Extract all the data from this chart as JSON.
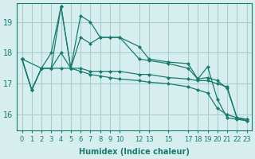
{
  "xlabel": "Humidex (Indice chaleur)",
  "ylabel": "",
  "bg_color": "#d6eeee",
  "grid_color": "#aacccc",
  "line_color": "#1a7a6e",
  "xtick_positions": [
    0,
    1,
    2,
    3,
    4,
    5,
    6,
    7,
    8,
    9,
    10,
    12,
    13,
    15,
    17,
    18,
    19,
    20,
    21,
    22,
    23
  ],
  "xtick_labels": [
    "0",
    "1",
    "2",
    "3",
    "4",
    "5",
    "6",
    "7",
    "8",
    "9",
    "10",
    "12",
    "13",
    "15",
    "17",
    "18",
    "19",
    "20",
    "21",
    "22",
    "23"
  ],
  "ylim": [
    15.5,
    19.6
  ],
  "xlim": [
    -0.5,
    23.5
  ],
  "yticks": [
    16,
    17,
    18,
    19
  ],
  "series": [
    {
      "x": [
        0,
        1,
        2,
        3,
        4,
        5,
        6,
        7,
        8,
        9,
        10,
        12,
        13,
        15,
        17,
        18,
        19,
        20,
        21,
        22,
        23
      ],
      "y": [
        17.8,
        16.8,
        17.5,
        17.5,
        19.5,
        17.5,
        19.2,
        19.0,
        18.5,
        18.5,
        18.5,
        18.2,
        17.8,
        17.7,
        17.65,
        17.15,
        17.2,
        17.1,
        16.85,
        15.9,
        15.85
      ]
    },
    {
      "x": [
        0,
        1,
        2,
        3,
        4,
        5,
        6,
        7,
        8,
        9,
        10,
        12,
        13,
        15,
        17,
        18,
        19,
        20,
        21,
        22,
        23
      ],
      "y": [
        17.8,
        16.8,
        17.5,
        17.5,
        18.0,
        17.5,
        17.5,
        17.4,
        17.4,
        17.4,
        17.4,
        17.3,
        17.3,
        17.2,
        17.15,
        17.1,
        17.1,
        17.0,
        16.9,
        15.9,
        15.85
      ]
    },
    {
      "x": [
        0,
        2,
        3,
        4,
        5,
        6,
        7,
        8,
        9,
        10,
        12,
        13,
        15,
        17,
        18,
        19,
        20,
        21,
        22,
        23
      ],
      "y": [
        17.8,
        17.5,
        18.0,
        19.5,
        17.5,
        18.5,
        18.3,
        18.5,
        18.5,
        18.5,
        17.8,
        17.75,
        17.65,
        17.5,
        17.15,
        17.55,
        16.5,
        15.9,
        15.85,
        15.8
      ]
    },
    {
      "x": [
        0,
        1,
        2,
        3,
        4,
        5,
        6,
        7,
        8,
        9,
        10,
        12,
        13,
        15,
        17,
        18,
        19,
        20,
        21,
        22,
        23
      ],
      "y": [
        17.8,
        16.8,
        17.5,
        17.5,
        17.5,
        17.5,
        17.4,
        17.3,
        17.25,
        17.2,
        17.15,
        17.1,
        17.05,
        17.0,
        16.9,
        16.8,
        16.7,
        16.2,
        16.0,
        15.9,
        15.8
      ]
    }
  ]
}
